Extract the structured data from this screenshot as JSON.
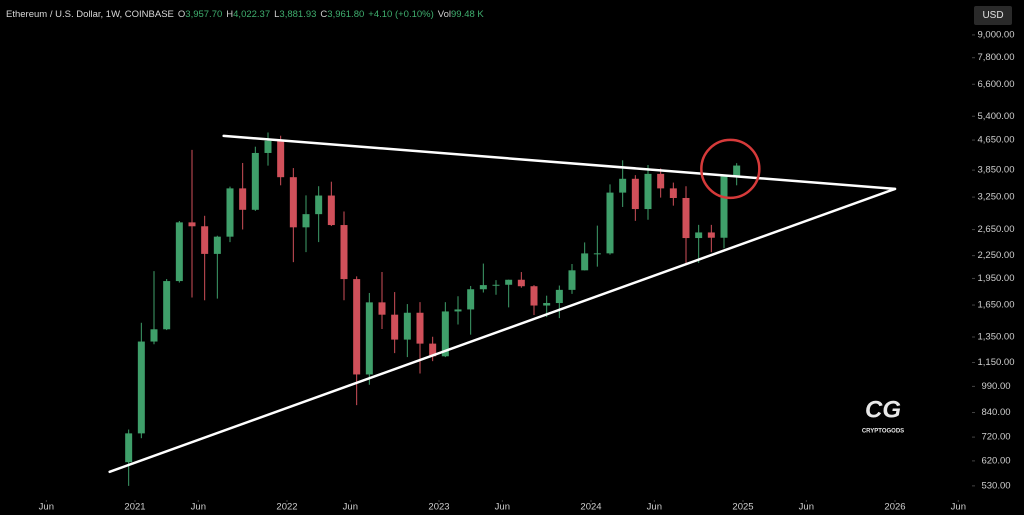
{
  "chart_data": {
    "type": "candlestick",
    "title": "Ethereum / U.S. Dollar, 1W, COINBASE",
    "legend_values": [
      {
        "key": "O",
        "value": "3,957.70"
      },
      {
        "key": "H",
        "value": "4,022.37"
      },
      {
        "key": "L",
        "value": "3,881.93"
      },
      {
        "key": "C",
        "value": "3,961.80"
      },
      {
        "key": "",
        "value": "+4.10 (+0.10%)"
      },
      {
        "key": "Vol",
        "value": "99.48 K"
      }
    ],
    "currency": "USD",
    "watermark": {
      "logo": "CG",
      "name": "CRYPTOGODS"
    },
    "log_scale": true,
    "up_color": "#3f9f6a",
    "down_color": "#d0505a",
    "x": [
      "2020-12",
      "2021-01",
      "2021-02",
      "2021-03",
      "2021-04",
      "2021-05",
      "2021-06",
      "2021-07",
      "2021-08",
      "2021-09",
      "2021-10",
      "2021-11",
      "2021-12",
      "2022-01",
      "2022-02",
      "2022-03",
      "2022-04",
      "2022-05",
      "2022-06",
      "2022-07",
      "2022-08",
      "2022-09",
      "2022-10",
      "2022-11",
      "2022-12",
      "2023-01",
      "2023-02",
      "2023-03",
      "2023-04",
      "2023-05",
      "2023-06",
      "2023-07",
      "2023-08",
      "2023-09",
      "2023-10",
      "2023-11",
      "2023-12",
      "2024-01",
      "2024-02",
      "2024-03",
      "2024-04",
      "2024-05",
      "2024-06",
      "2024-07",
      "2024-08",
      "2024-09",
      "2024-10",
      "2024-11",
      "2024-12"
    ],
    "open": [
      615,
      737,
      1312,
      1417,
      1918,
      2773,
      2706,
      2275,
      2535,
      3433,
      3001,
      4288,
      4631,
      3683,
      2688,
      2920,
      3282,
      2727,
      1942,
      1067,
      1678,
      1553,
      1328,
      1572,
      1295,
      1196,
      1585,
      1605,
      1822,
      1870,
      1874,
      1934,
      1857,
      1645,
      1671,
      1815,
      2052,
      2282,
      2283,
      3343,
      3646,
      3015,
      3760,
      3433,
      3232,
      2513,
      2603,
      2518,
      3705
    ],
    "high": [
      755,
      1476,
      2041,
      1943,
      2797,
      4372,
      2890,
      2550,
      3470,
      4027,
      4460,
      4878,
      4778,
      3900,
      3285,
      3480,
      3580,
      2970,
      1975,
      1780,
      2030,
      1790,
      1660,
      1680,
      1352,
      1680,
      1744,
      1860,
      2141,
      1930,
      1935,
      2030,
      1870,
      1750,
      1865,
      2135,
      2445,
      2717,
      3520,
      4095,
      3730,
      3975,
      3890,
      3560,
      3480,
      2730,
      2730,
      3740,
      4022
    ],
    "low": [
      530,
      715,
      1290,
      1410,
      1900,
      1730,
      1700,
      1718,
      2450,
      2652,
      2980,
      3960,
      3500,
      2160,
      2300,
      2450,
      2710,
      1700,
      880,
      1000,
      1420,
      1220,
      1190,
      1073,
      1160,
      1190,
      1460,
      1370,
      1785,
      1760,
      1626,
      1840,
      1550,
      1530,
      1520,
      1770,
      2050,
      2100,
      2265,
      3055,
      2800,
      2820,
      3240,
      3080,
      2120,
      2150,
      2300,
      2357,
      3500
    ],
    "close": [
      737,
      1312,
      1417,
      1918,
      2773,
      2706,
      2275,
      2535,
      3433,
      3001,
      4288,
      4631,
      3683,
      2688,
      2920,
      3282,
      2727,
      1942,
      1067,
      1678,
      1553,
      1328,
      1572,
      1295,
      1196,
      1585,
      1605,
      1822,
      1870,
      1874,
      1934,
      1857,
      1645,
      1671,
      1815,
      2052,
      2282,
      2283,
      3343,
      3646,
      3015,
      3760,
      3433,
      3232,
      2513,
      2603,
      2518,
      3705,
      3962
    ],
    "ylim": [
      485,
      10860
    ],
    "yticks": [
      {
        "value": 530,
        "label": "530.00"
      },
      {
        "value": 620,
        "label": "620.00"
      },
      {
        "value": 720,
        "label": "720.00"
      },
      {
        "value": 840,
        "label": "840.00"
      },
      {
        "value": 990,
        "label": "990.00"
      },
      {
        "value": 1150,
        "label": "1,150.00"
      },
      {
        "value": 1350,
        "label": "1,350.00"
      },
      {
        "value": 1650,
        "label": "1,650.00"
      },
      {
        "value": 1950,
        "label": "1,950.00"
      },
      {
        "value": 2250,
        "label": "2,250.00"
      },
      {
        "value": 2650,
        "label": "2,650.00"
      },
      {
        "value": 3250,
        "label": "3,250.00"
      },
      {
        "value": 3850,
        "label": "3,850.00"
      },
      {
        "value": 4650,
        "label": "4,650.00"
      },
      {
        "value": 5400,
        "label": "5,400.00"
      },
      {
        "value": 6600,
        "label": "6,600.00"
      },
      {
        "value": 7800,
        "label": "7,800.00"
      },
      {
        "value": 9000,
        "label": "9,000.00"
      }
    ],
    "xticks": [
      {
        "value": "2020-06",
        "label": "Jun"
      },
      {
        "value": "2021-01",
        "label": "2021"
      },
      {
        "value": "2021-06",
        "label": "Jun"
      },
      {
        "value": "2022-01",
        "label": "2022"
      },
      {
        "value": "2022-06",
        "label": "Jun"
      },
      {
        "value": "2023-01",
        "label": "2023"
      },
      {
        "value": "2023-06",
        "label": "Jun"
      },
      {
        "value": "2024-01",
        "label": "2024"
      },
      {
        "value": "2024-06",
        "label": "Jun"
      },
      {
        "value": "2025-01",
        "label": "2025"
      },
      {
        "value": "2025-06",
        "label": "Jun"
      },
      {
        "value": "2026-01",
        "label": "2026"
      },
      {
        "value": "2026-06",
        "label": "Jun"
      }
    ],
    "trendlines": [
      {
        "from": [
          "2021-08",
          4774
        ],
        "to": [
          "2026-01",
          3422
        ],
        "color": "#ffffff"
      },
      {
        "from": [
          "2020-11",
          579
        ],
        "to": [
          "2026-01",
          3422
        ],
        "color": "#ffffff"
      }
    ],
    "highlight": {
      "center": [
        "2024-12",
        3880
      ],
      "color": "#d63a3a"
    }
  }
}
